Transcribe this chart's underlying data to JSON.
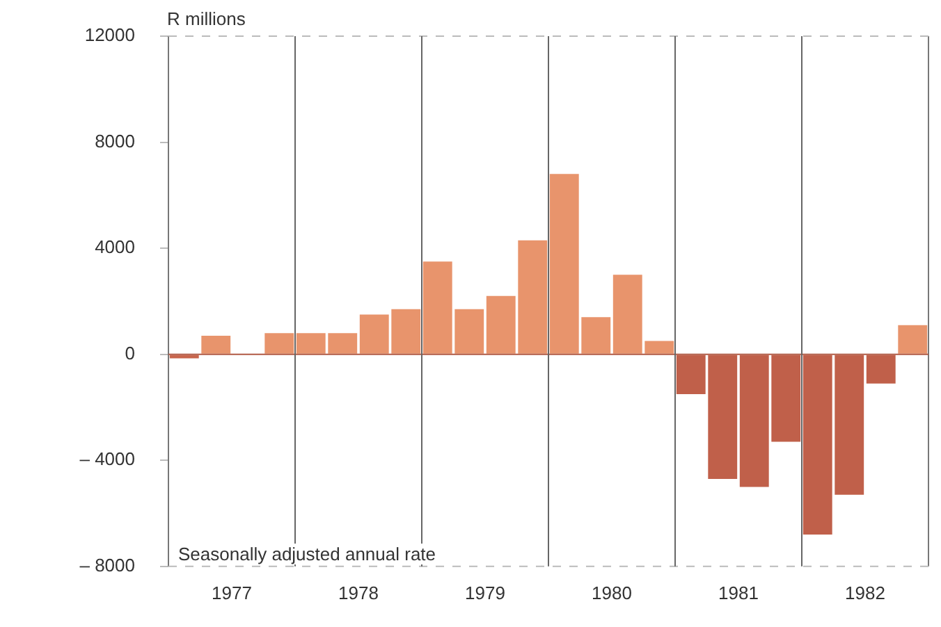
{
  "chart_data": {
    "type": "bar",
    "ylabel": "R millions",
    "annotations": [
      "Seasonally adjusted annual rate"
    ],
    "x": [
      1977.125,
      1977.375,
      1977.625,
      1977.875,
      1978.125,
      1978.375,
      1978.625,
      1978.875,
      1979.125,
      1979.375,
      1979.625,
      1979.875,
      1980.125,
      1980.375,
      1980.625,
      1980.875,
      1981.125,
      1981.375,
      1981.625,
      1981.875,
      1982.125,
      1982.375,
      1982.625,
      1982.875
    ],
    "values": [
      -150,
      700,
      null,
      800,
      800,
      800,
      1500,
      1700,
      3500,
      1700,
      2200,
      4300,
      6800,
      1400,
      3000,
      500,
      -1500,
      -4700,
      -5000,
      -3300,
      -6800,
      -5300,
      -1100,
      1100
    ],
    "colors": [
      "#c8654c",
      "#e8946c",
      "#e8946c",
      "#e8946c",
      "#e8946c",
      "#e8946c",
      "#e8946c",
      "#e8946c",
      "#e8946c",
      "#e8946c",
      "#e8946c",
      "#e8946c",
      "#e8946c",
      "#e8946c",
      "#e8946c",
      "#e8946c",
      "#c0604a",
      "#c0604a",
      "#c0604a",
      "#c0604a",
      "#c0604a",
      "#c0604a",
      "#c0604a",
      "#e8946c"
    ],
    "xlim": [
      1977,
      1983
    ],
    "xticks": [
      {
        "value": 1977.5,
        "label": "1977"
      },
      {
        "value": 1978.5,
        "label": "1978"
      },
      {
        "value": 1979.5,
        "label": "1979"
      },
      {
        "value": 1980.5,
        "label": "1980"
      },
      {
        "value": 1981.5,
        "label": "1981"
      },
      {
        "value": 1982.5,
        "label": "1982"
      }
    ],
    "ylim": [
      -8000,
      12000
    ],
    "yticks": [
      {
        "value": -8000,
        "label": "– 8000"
      },
      {
        "value": -4000,
        "label": "– 4000"
      },
      0,
      4000,
      8000,
      12000
    ],
    "ref_lines": [
      {
        "axis": "y",
        "value": 0,
        "color": "#b05a44"
      },
      {
        "axis": "x",
        "value": 1978
      },
      {
        "axis": "x",
        "value": 1979
      },
      {
        "axis": "x",
        "value": 1980
      },
      {
        "axis": "x",
        "value": 1981
      },
      {
        "axis": "x",
        "value": 1982
      }
    ],
    "grid": false,
    "legend": false
  }
}
